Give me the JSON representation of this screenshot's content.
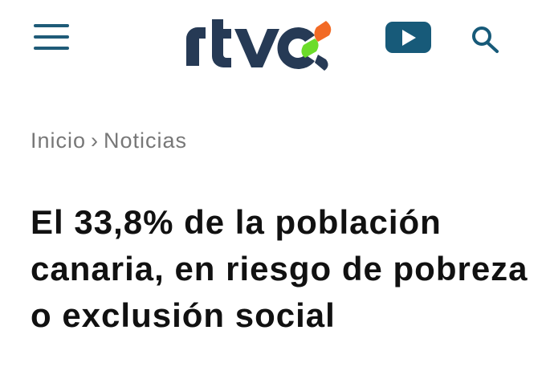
{
  "header": {
    "logo_text": "rtvc",
    "logo_colors": {
      "text": "#263a55",
      "orange": "#f26a25",
      "green": "#6cdc2a"
    },
    "menu_icon": "hamburger-icon",
    "video_icon": "youtube-play-icon",
    "search_icon": "search-icon"
  },
  "breadcrumb": {
    "items": [
      "Inicio",
      "Noticias"
    ],
    "separator": "›"
  },
  "article": {
    "title": "El 33,8% de la población canaria, en riesgo de pobreza o exclusión social"
  }
}
